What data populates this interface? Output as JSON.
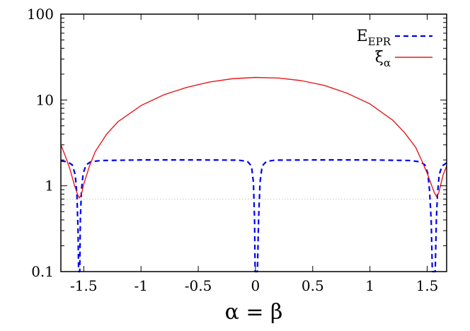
{
  "chart_data": {
    "type": "line",
    "title": "",
    "xlabel": "α = β",
    "ylabel": "",
    "xlim": [
      -1.7,
      1.67
    ],
    "ylim": [
      0.1,
      100
    ],
    "yscale": "log",
    "grid": false,
    "legend_position": "top-right",
    "x_ticks": [
      {
        "value": -1.5,
        "label": "-1.5"
      },
      {
        "value": -1,
        "label": "-1"
      },
      {
        "value": -0.5,
        "label": "-0.5"
      },
      {
        "value": 0,
        "label": "0"
      },
      {
        "value": 0.5,
        "label": "0.5"
      },
      {
        "value": 1,
        "label": "1"
      },
      {
        "value": 1.5,
        "label": "1.5"
      }
    ],
    "y_ticks": [
      {
        "value": 0.1,
        "label": "0.1"
      },
      {
        "value": 1,
        "label": "1"
      },
      {
        "value": 10,
        "label": "10"
      },
      {
        "value": 100,
        "label": "100"
      }
    ],
    "reference_line": {
      "y": 0.7,
      "color": "#c8c8c8",
      "style": "dotted"
    },
    "series": [
      {
        "name": "E",
        "name_sub": "EPR",
        "color": "#0000ee",
        "style": "dashed",
        "points": [
          [
            -1.7,
            1.95
          ],
          [
            -1.64,
            1.9
          ],
          [
            -1.6,
            1.75
          ],
          [
            -1.575,
            1.35
          ],
          [
            -1.56,
            0.8
          ],
          [
            -1.55,
            0.3
          ],
          [
            -1.545,
            0.1
          ],
          [
            -1.535,
            0.1
          ],
          [
            -1.53,
            0.4
          ],
          [
            -1.52,
            0.9
          ],
          [
            -1.505,
            1.4
          ],
          [
            -1.48,
            1.75
          ],
          [
            -1.44,
            1.9
          ],
          [
            -1.35,
            1.97
          ],
          [
            -1.0,
            2.0
          ],
          [
            -0.5,
            2.0
          ],
          [
            -0.15,
            1.99
          ],
          [
            -0.07,
            1.92
          ],
          [
            -0.035,
            1.7
          ],
          [
            -0.018,
            1.1
          ],
          [
            -0.008,
            0.4
          ],
          [
            -0.003,
            0.1
          ],
          [
            0.017,
            0.1
          ],
          [
            0.027,
            0.4
          ],
          [
            0.04,
            1.1
          ],
          [
            0.058,
            1.7
          ],
          [
            0.095,
            1.92
          ],
          [
            0.17,
            1.99
          ],
          [
            0.5,
            2.0
          ],
          [
            1.0,
            2.0
          ],
          [
            1.35,
            1.97
          ],
          [
            1.44,
            1.9
          ],
          [
            1.48,
            1.75
          ],
          [
            1.505,
            1.4
          ],
          [
            1.52,
            0.9
          ],
          [
            1.535,
            0.4
          ],
          [
            1.545,
            0.1
          ],
          [
            1.57,
            0.1
          ],
          [
            1.58,
            0.4
          ],
          [
            1.59,
            0.8
          ],
          [
            1.605,
            1.35
          ],
          [
            1.63,
            1.7
          ],
          [
            1.67,
            1.85
          ]
        ]
      },
      {
        "name": "ξ",
        "name_sub": "α",
        "color": "#e41a1c",
        "style": "solid",
        "points": [
          [
            -1.7,
            3.0
          ],
          [
            -1.66,
            2.2
          ],
          [
            -1.62,
            1.55
          ],
          [
            -1.58,
            1.0
          ],
          [
            -1.555,
            0.8
          ],
          [
            -1.54,
            0.72
          ],
          [
            -1.52,
            0.8
          ],
          [
            -1.5,
            1.05
          ],
          [
            -1.45,
            1.7
          ],
          [
            -1.4,
            2.5
          ],
          [
            -1.3,
            4.0
          ],
          [
            -1.2,
            5.6
          ],
          [
            -1.0,
            8.6
          ],
          [
            -0.8,
            11.5
          ],
          [
            -0.6,
            14.0
          ],
          [
            -0.4,
            16.2
          ],
          [
            -0.2,
            17.7
          ],
          [
            0.0,
            18.3
          ],
          [
            0.2,
            18.0
          ],
          [
            0.4,
            16.8
          ],
          [
            0.6,
            14.8
          ],
          [
            0.8,
            12.0
          ],
          [
            1.0,
            9.0
          ],
          [
            1.2,
            5.8
          ],
          [
            1.3,
            4.2
          ],
          [
            1.4,
            2.8
          ],
          [
            1.45,
            2.0
          ],
          [
            1.5,
            1.4
          ],
          [
            1.54,
            1.0
          ],
          [
            1.56,
            0.85
          ],
          [
            1.58,
            0.75
          ],
          [
            1.6,
            0.82
          ],
          [
            1.62,
            1.05
          ],
          [
            1.64,
            1.35
          ],
          [
            1.67,
            1.7
          ]
        ]
      }
    ]
  }
}
